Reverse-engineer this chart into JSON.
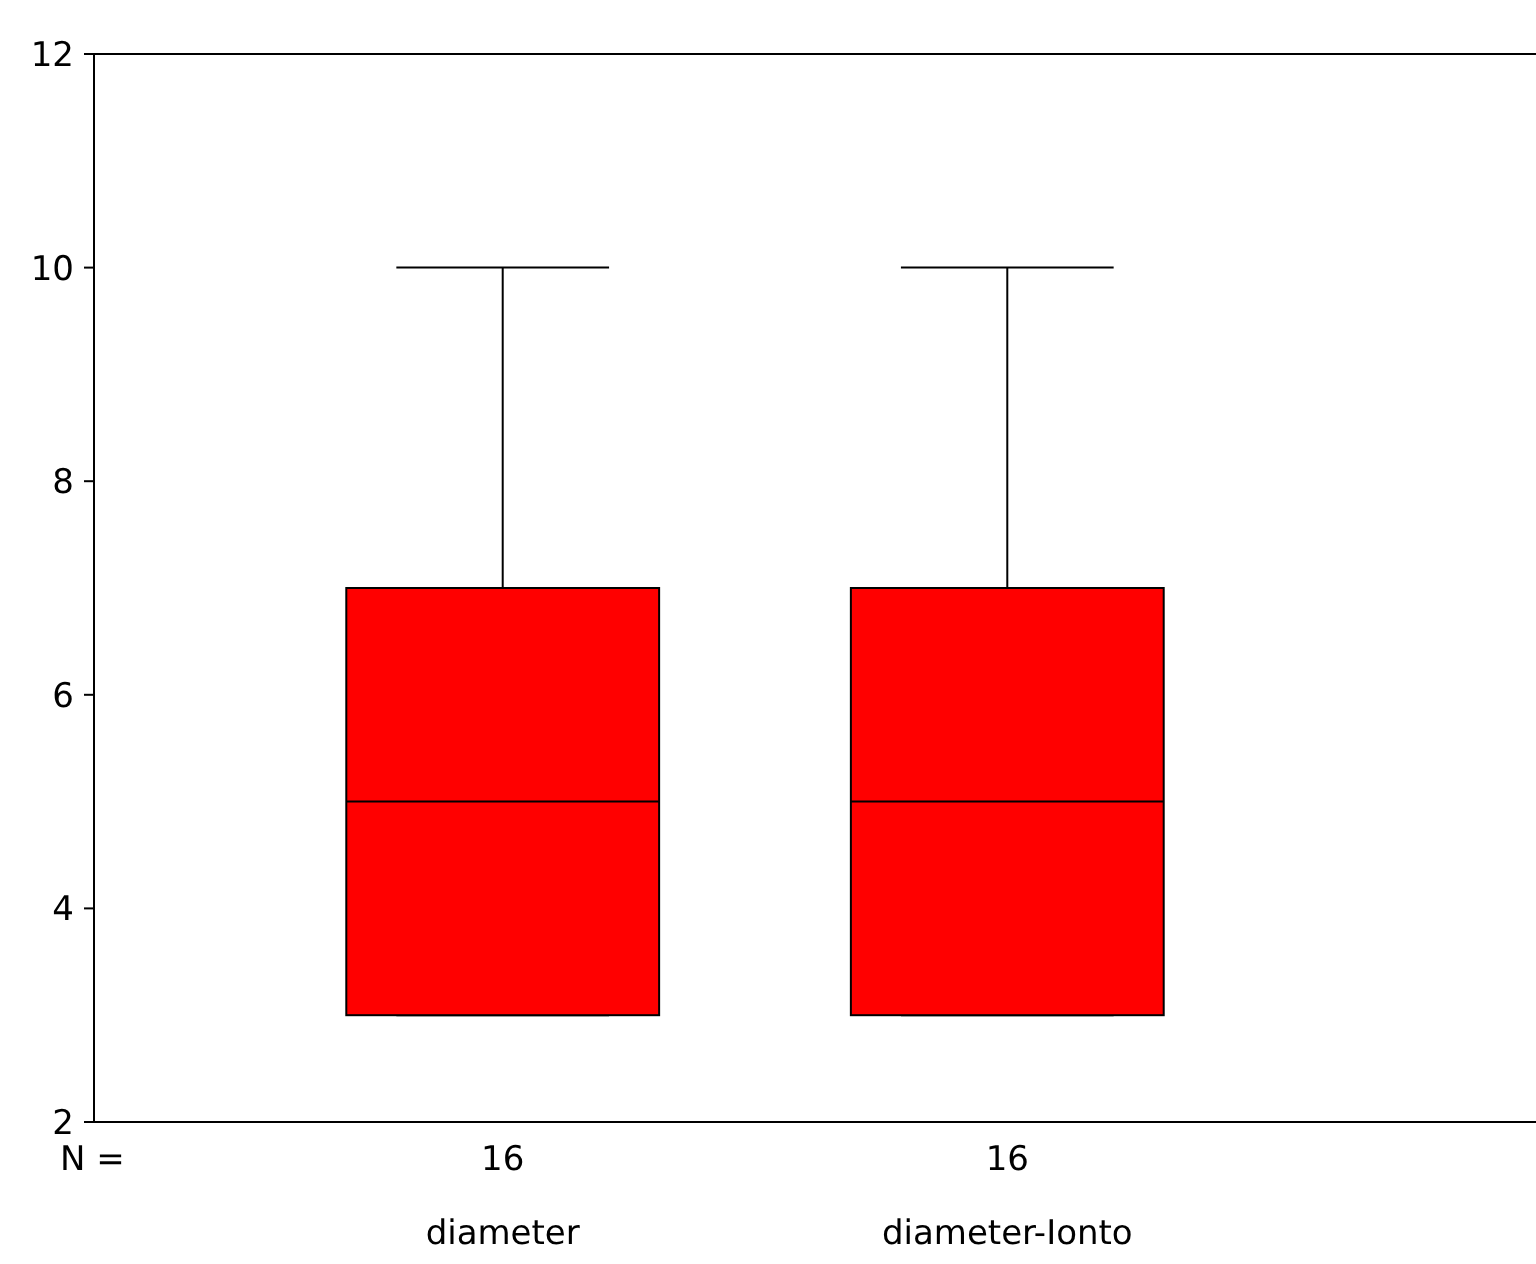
{
  "chart_data": {
    "type": "box",
    "categories": [
      "diameter",
      "diameter-Ionto"
    ],
    "boxes": [
      {
        "low": 3,
        "q1": 3,
        "median": 5,
        "q3": 7,
        "high": 10
      },
      {
        "low": 3,
        "q1": 3,
        "median": 5,
        "q3": 7,
        "high": 10
      }
    ],
    "color": "#ff0000",
    "ylim": [
      2,
      12
    ],
    "yticks": [
      2,
      4,
      6,
      8,
      10,
      12
    ],
    "annotations": [
      "N =",
      "16",
      "16"
    ]
  }
}
